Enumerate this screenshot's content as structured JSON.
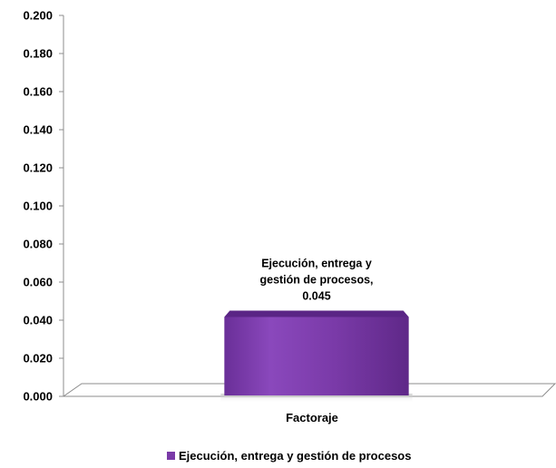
{
  "chart_data": {
    "type": "bar",
    "title": "",
    "categories": [
      "Factoraje"
    ],
    "series": [
      {
        "name": "Ejecución, entrega y gestión de procesos",
        "values": [
          0.045
        ],
        "color": "#7a3aa8"
      }
    ],
    "data_label_lines": [
      "Ejecución,  entrega y",
      "gestión de procesos,",
      "0.045"
    ],
    "ylim": [
      0,
      0.2
    ],
    "yticks": [
      "0.000",
      "0.020",
      "0.040",
      "0.060",
      "0.080",
      "0.100",
      "0.120",
      "0.140",
      "0.160",
      "0.180",
      "0.200"
    ],
    "xlabel": "",
    "ylabel": "",
    "grid": false,
    "legend_position": "bottom",
    "style": "3d-bar"
  }
}
